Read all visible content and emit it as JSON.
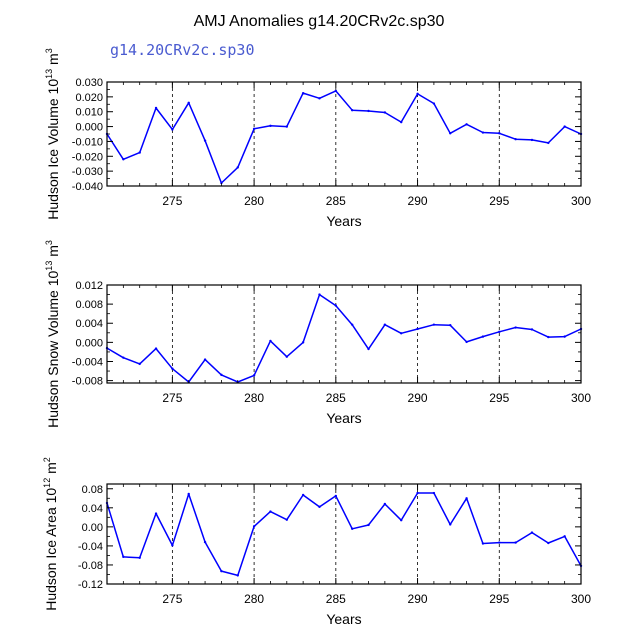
{
  "page": {
    "title": "AMJ Anomalies g14.20CRv2c.sp30",
    "subtitle": "g14.20CRv2c.sp30"
  },
  "colors": {
    "series": "#0000ff",
    "subtitle": "#4a5bd0",
    "axis": "#000000",
    "grid": "#000000"
  },
  "chart_data": [
    {
      "type": "line",
      "ylabel": "Hudson Ice Volume 10",
      "ylabel_exp": "13",
      "ylabel_unit": " m",
      "ylabel_unit_exp": "3",
      "xlabel": "Years",
      "xlim": [
        271,
        300
      ],
      "ylim": [
        -0.04,
        0.03
      ],
      "xticks": [
        275,
        280,
        285,
        290,
        295,
        300
      ],
      "xtick_labels": [
        "275",
        "280",
        "285",
        "290",
        "295",
        "300"
      ],
      "yticks": [
        -0.04,
        -0.03,
        -0.02,
        -0.01,
        0.0,
        0.01,
        0.02,
        0.03
      ],
      "ytick_labels": [
        "-0.040",
        "-0.030",
        "-0.020",
        "-0.010",
        "0.000",
        "0.010",
        "0.020",
        "0.030"
      ],
      "grid_x": [
        275,
        280,
        285,
        290,
        295
      ],
      "x": [
        271,
        272,
        273,
        274,
        275,
        276,
        277,
        278,
        279,
        280,
        281,
        282,
        283,
        284,
        285,
        286,
        287,
        288,
        289,
        290,
        291,
        292,
        293,
        294,
        295,
        296,
        297,
        298,
        299,
        300
      ],
      "values": [
        -0.005,
        -0.022,
        -0.0175,
        0.0125,
        -0.002,
        0.016,
        -0.0095,
        -0.038,
        -0.0275,
        -0.0015,
        0.0005,
        0.0,
        0.0225,
        0.019,
        0.024,
        0.011,
        0.0105,
        0.0095,
        0.003,
        0.022,
        0.0155,
        -0.0045,
        0.0015,
        -0.004,
        -0.0045,
        -0.0085,
        -0.009,
        -0.011,
        0.0,
        -0.005
      ]
    },
    {
      "type": "line",
      "ylabel": "Hudson Snow Volume 10",
      "ylabel_exp": "13",
      "ylabel_unit": " m",
      "ylabel_unit_exp": "3",
      "xlabel": "Years",
      "xlim": [
        271,
        300
      ],
      "ylim": [
        -0.0085,
        0.012
      ],
      "xticks": [
        275,
        280,
        285,
        290,
        295,
        300
      ],
      "xtick_labels": [
        "275",
        "280",
        "285",
        "290",
        "295",
        "300"
      ],
      "yticks": [
        -0.008,
        -0.004,
        0.0,
        0.004,
        0.008,
        0.012
      ],
      "ytick_labels": [
        "-0.008",
        "-0.004",
        "0.000",
        "0.004",
        "0.008",
        "0.012"
      ],
      "grid_x": [
        275,
        280,
        285,
        290,
        295
      ],
      "x": [
        271,
        272,
        273,
        274,
        275,
        276,
        277,
        278,
        279,
        280,
        281,
        282,
        283,
        284,
        285,
        286,
        287,
        288,
        289,
        290,
        291,
        292,
        293,
        294,
        295,
        296,
        297,
        298,
        299,
        300
      ],
      "values": [
        -0.0012,
        -0.0032,
        -0.0045,
        -0.0013,
        -0.0055,
        -0.0083,
        -0.0036,
        -0.0068,
        -0.0083,
        -0.0069,
        0.0003,
        -0.003,
        0.0,
        0.01,
        0.0077,
        0.0037,
        -0.0014,
        0.0037,
        0.0019,
        0.0028,
        0.0037,
        0.0036,
        0.0001,
        0.0012,
        0.0022,
        0.0031,
        0.0027,
        0.0011,
        0.0012,
        0.0028
      ]
    },
    {
      "type": "line",
      "ylabel": "Hudson Ice Area 10",
      "ylabel_exp": "12",
      "ylabel_unit": " m",
      "ylabel_unit_exp": "2",
      "xlabel": "Years",
      "xlim": [
        271,
        300
      ],
      "ylim": [
        -0.12,
        0.09
      ],
      "xticks": [
        275,
        280,
        285,
        290,
        295,
        300
      ],
      "xtick_labels": [
        "275",
        "280",
        "285",
        "290",
        "295",
        "300"
      ],
      "yticks": [
        -0.12,
        -0.08,
        -0.04,
        0.0,
        0.04,
        0.08
      ],
      "ytick_labels": [
        "-0.12",
        "-0.08",
        "-0.04",
        "0.00",
        "0.04",
        "0.08"
      ],
      "grid_x": [
        275,
        280,
        285,
        290,
        295
      ],
      "x": [
        271,
        272,
        273,
        274,
        275,
        276,
        277,
        278,
        279,
        280,
        281,
        282,
        283,
        284,
        285,
        286,
        287,
        288,
        289,
        290,
        291,
        292,
        293,
        294,
        295,
        296,
        297,
        298,
        299,
        300
      ],
      "values": [
        0.05,
        -0.063,
        -0.065,
        0.028,
        -0.039,
        0.069,
        -0.032,
        -0.093,
        -0.102,
        0.001,
        0.032,
        0.015,
        0.067,
        0.042,
        0.065,
        -0.004,
        0.004,
        0.048,
        0.014,
        0.071,
        0.071,
        0.005,
        0.06,
        -0.035,
        -0.033,
        -0.033,
        -0.012,
        -0.034,
        -0.02,
        -0.082
      ]
    }
  ]
}
